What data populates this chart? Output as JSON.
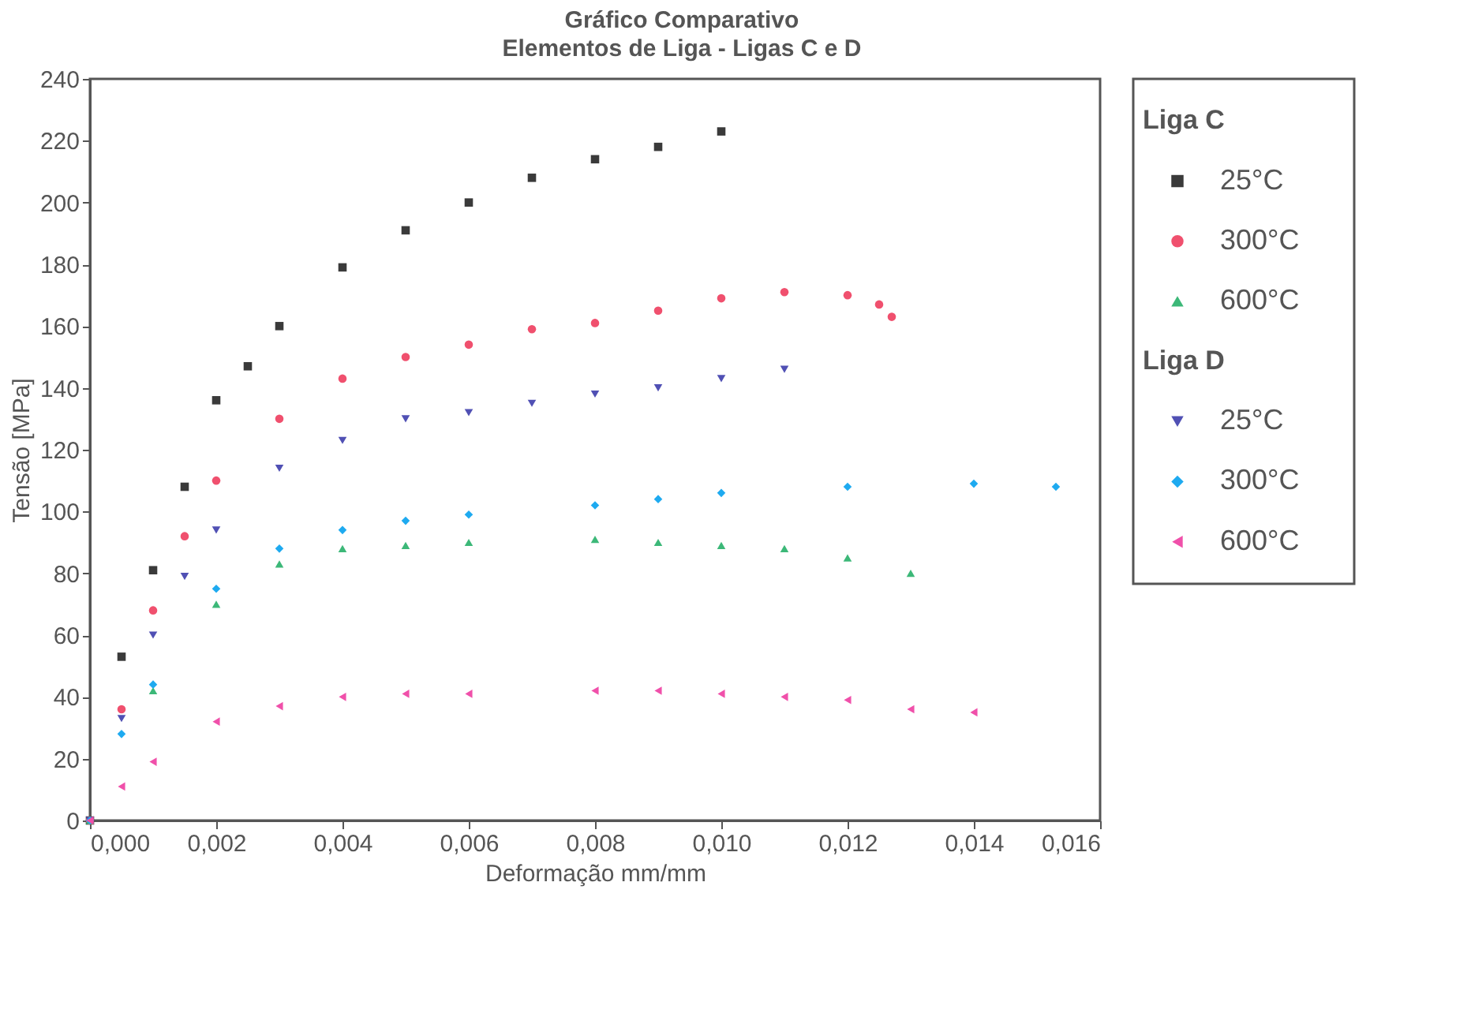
{
  "chart_data": {
    "type": "scatter",
    "title": "Gráfico Comparativo",
    "subtitle": "Elementos de Liga - Ligas C e D",
    "xlabel": "Deformação mm/mm",
    "ylabel": "Tensão [MPa]",
    "xlim": [
      0,
      0.016
    ],
    "xticks": [
      {
        "value": 0,
        "label": "0,000"
      },
      {
        "value": 0.002,
        "label": "0,002"
      },
      {
        "value": 0.004,
        "label": "0,004"
      },
      {
        "value": 0.006,
        "label": "0,006"
      },
      {
        "value": 0.008,
        "label": "0,008"
      },
      {
        "value": 0.01,
        "label": "0,010"
      },
      {
        "value": 0.012,
        "label": "0,012"
      },
      {
        "value": 0.014,
        "label": "0,014"
      },
      {
        "value": 0.016,
        "label": "0,016"
      }
    ],
    "ylim": [
      0,
      240
    ],
    "yticks": [
      0,
      20,
      40,
      60,
      80,
      100,
      120,
      140,
      160,
      180,
      200,
      220,
      240
    ],
    "grid": false,
    "legend": "right",
    "annotations": [
      "Liga C",
      "Liga D"
    ],
    "series": [
      {
        "name": "25°C",
        "color": "#3a3a3a",
        "marker": "square",
        "x": [
          0,
          0.0005,
          0.001,
          0.0015,
          0.002,
          0.0025,
          0.003,
          0.004,
          0.005,
          0.006,
          0.007,
          0.008,
          0.009,
          0.01
        ],
        "values": [
          0,
          53,
          81,
          108,
          136,
          147,
          160,
          179,
          191,
          200,
          208,
          214,
          218,
          223
        ]
      },
      {
        "name": "300°C",
        "color": "#f0506e",
        "marker": "circle",
        "x": [
          0,
          0.0005,
          0.001,
          0.0015,
          0.002,
          0.003,
          0.004,
          0.005,
          0.006,
          0.007,
          0.008,
          0.009,
          0.01,
          0.011,
          0.012,
          0.0125,
          0.0127
        ],
        "values": [
          0,
          36,
          68,
          92,
          110,
          130,
          143,
          150,
          154,
          159,
          161,
          165,
          169,
          171,
          170,
          167,
          163
        ]
      },
      {
        "name": "600°C",
        "color": "#3cb878",
        "marker": "triangle-up",
        "x": [
          0,
          0.001,
          0.002,
          0.003,
          0.004,
          0.005,
          0.006,
          0.008,
          0.009,
          0.01,
          0.011,
          0.012,
          0.013
        ],
        "values": [
          0,
          42,
          70,
          83,
          88,
          89,
          90,
          91,
          90,
          89,
          88,
          85,
          80
        ]
      },
      {
        "name": "25°C",
        "color": "#5050b4",
        "marker": "triangle-down",
        "x": [
          0,
          0.0005,
          0.001,
          0.0015,
          0.002,
          0.003,
          0.004,
          0.005,
          0.006,
          0.007,
          0.008,
          0.009,
          0.01,
          0.011
        ],
        "values": [
          0,
          33,
          60,
          79,
          94,
          114,
          123,
          130,
          132,
          135,
          138,
          140,
          143,
          146
        ]
      },
      {
        "name": "300°C",
        "color": "#1eaaf0",
        "marker": "diamond",
        "x": [
          0,
          0.0005,
          0.001,
          0.002,
          0.003,
          0.004,
          0.005,
          0.006,
          0.008,
          0.009,
          0.01,
          0.012,
          0.014,
          0.0153
        ],
        "values": [
          0,
          28,
          44,
          75,
          88,
          94,
          97,
          99,
          102,
          104,
          106,
          108,
          109,
          108
        ]
      },
      {
        "name": "600°C",
        "color": "#f050aa",
        "marker": "triangle-left",
        "x": [
          0,
          0.0005,
          0.001,
          0.002,
          0.003,
          0.004,
          0.005,
          0.006,
          0.008,
          0.009,
          0.01,
          0.011,
          0.012,
          0.013,
          0.014
        ],
        "values": [
          0,
          11,
          19,
          32,
          37,
          40,
          41,
          41,
          42,
          42,
          41,
          40,
          39,
          36,
          35
        ]
      }
    ]
  }
}
